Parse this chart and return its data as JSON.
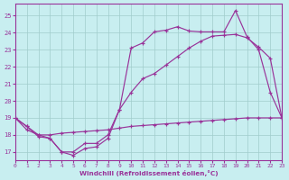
{
  "xlabel": "Windchill (Refroidissement éolien,°C)",
  "background_color": "#c8eef0",
  "grid_color": "#a0cccc",
  "line_color": "#993399",
  "xlim": [
    0,
    23
  ],
  "ylim": [
    16.5,
    25.7
  ],
  "yticks": [
    17,
    18,
    19,
    20,
    21,
    22,
    23,
    24,
    25
  ],
  "xticks": [
    0,
    1,
    2,
    3,
    4,
    5,
    6,
    7,
    8,
    9,
    10,
    11,
    12,
    13,
    14,
    15,
    16,
    17,
    18,
    19,
    20,
    21,
    22,
    23
  ],
  "line1_x": [
    0,
    1,
    2,
    3,
    4,
    5,
    6,
    7,
    8,
    9,
    10,
    11,
    12,
    13,
    14,
    15,
    16,
    17,
    18,
    19,
    20,
    21,
    22,
    23
  ],
  "line1_y": [
    19.0,
    18.5,
    17.9,
    17.8,
    17.0,
    16.8,
    17.2,
    17.3,
    17.8,
    19.5,
    23.1,
    23.4,
    24.05,
    24.15,
    24.35,
    24.1,
    24.05,
    24.05,
    24.05,
    25.3,
    23.75,
    23.0,
    20.5,
    19.0
  ],
  "line2_x": [
    0,
    1,
    2,
    3,
    4,
    5,
    6,
    7,
    8,
    9,
    10,
    11,
    12,
    13,
    14,
    15,
    16,
    17,
    18,
    19,
    20,
    21,
    22,
    23
  ],
  "line2_y": [
    19.0,
    18.5,
    18.0,
    17.8,
    17.0,
    17.0,
    17.5,
    17.5,
    18.0,
    19.5,
    20.5,
    21.3,
    21.6,
    22.1,
    22.6,
    23.1,
    23.5,
    23.8,
    23.85,
    23.9,
    23.7,
    23.15,
    22.5,
    19.0
  ],
  "line3_x": [
    0,
    1,
    2,
    3,
    4,
    5,
    6,
    7,
    8,
    9,
    10,
    11,
    12,
    13,
    14,
    15,
    16,
    17,
    18,
    19,
    20,
    21,
    22,
    23
  ],
  "line3_y": [
    19.0,
    18.3,
    18.0,
    18.0,
    18.1,
    18.15,
    18.2,
    18.25,
    18.3,
    18.4,
    18.5,
    18.55,
    18.6,
    18.65,
    18.7,
    18.75,
    18.8,
    18.85,
    18.9,
    18.95,
    19.0,
    19.0,
    19.0,
    19.0
  ]
}
